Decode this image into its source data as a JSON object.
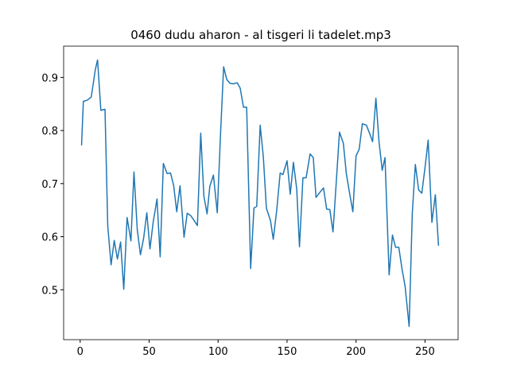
{
  "chart_data": {
    "type": "line",
    "title": "0460 dudu aharon - al tisgeri li tadelet.mp3",
    "x": [
      1,
      2.3,
      5,
      8,
      11,
      12.6,
      15,
      18,
      20,
      22.4,
      24.7,
      27,
      29.3,
      31.6,
      34,
      36.8,
      39,
      41.4,
      43.7,
      46,
      48.3,
      50.6,
      52.9,
      55.7,
      58,
      60.3,
      63,
      65.5,
      67.8,
      70,
      72.4,
      75.3,
      77.6,
      80,
      82,
      85,
      87.4,
      89.7,
      92,
      94,
      96.6,
      99.4,
      101.7,
      104,
      106.3,
      108.6,
      111,
      113.8,
      116,
      118.4,
      120.7,
      123.6,
      126,
      128,
      130.5,
      132.8,
      135,
      138,
      140,
      142.5,
      145,
      147,
      150,
      152.3,
      154.6,
      157,
      159,
      161.5,
      163.8,
      166.7,
      169,
      171,
      173.6,
      176.4,
      178.7,
      181,
      183.3,
      185.6,
      188,
      190.8,
      193,
      195.4,
      197.7,
      200,
      202.3,
      204.6,
      207.5,
      209.8,
      212,
      214.4,
      216.7,
      219,
      221,
      224,
      226.4,
      228.7,
      231,
      233.3,
      235.6,
      238.5,
      240.8,
      243,
      245.4,
      247.7,
      250,
      252.3,
      255,
      257.5,
      259.8
    ],
    "series": [
      {
        "color": "#1f77b4",
        "values": [
          0.772,
          0.855,
          0.857,
          0.863,
          0.915,
          0.933,
          0.838,
          0.84,
          0.62,
          0.547,
          0.593,
          0.558,
          0.59,
          0.501,
          0.636,
          0.592,
          0.722,
          0.613,
          0.566,
          0.597,
          0.645,
          0.577,
          0.627,
          0.671,
          0.562,
          0.738,
          0.719,
          0.72,
          0.696,
          0.647,
          0.696,
          0.599,
          0.644,
          0.64,
          0.633,
          0.621,
          0.795,
          0.676,
          0.643,
          0.695,
          0.716,
          0.645,
          0.79,
          0.92,
          0.896,
          0.889,
          0.888,
          0.89,
          0.88,
          0.844,
          0.844,
          0.54,
          0.654,
          0.657,
          0.81,
          0.75,
          0.654,
          0.63,
          0.595,
          0.65,
          0.72,
          0.717,
          0.743,
          0.68,
          0.74,
          0.69,
          0.581,
          0.711,
          0.711,
          0.756,
          0.749,
          0.674,
          0.683,
          0.692,
          0.652,
          0.651,
          0.609,
          0.7,
          0.797,
          0.776,
          0.718,
          0.681,
          0.647,
          0.752,
          0.765,
          0.813,
          0.81,
          0.795,
          0.779,
          0.861,
          0.778,
          0.725,
          0.749,
          0.528,
          0.603,
          0.58,
          0.58,
          0.54,
          0.506,
          0.431,
          0.645,
          0.736,
          0.688,
          0.682,
          0.73,
          0.782,
          0.627,
          0.679,
          0.583
        ]
      }
    ],
    "xlim": [
      -12,
      274
    ],
    "ylim": [
      0.406,
      0.959
    ],
    "xticks": [
      0,
      50,
      100,
      150,
      200,
      250
    ],
    "yticks": [
      0.5,
      0.6,
      0.7,
      0.8,
      0.9
    ]
  }
}
